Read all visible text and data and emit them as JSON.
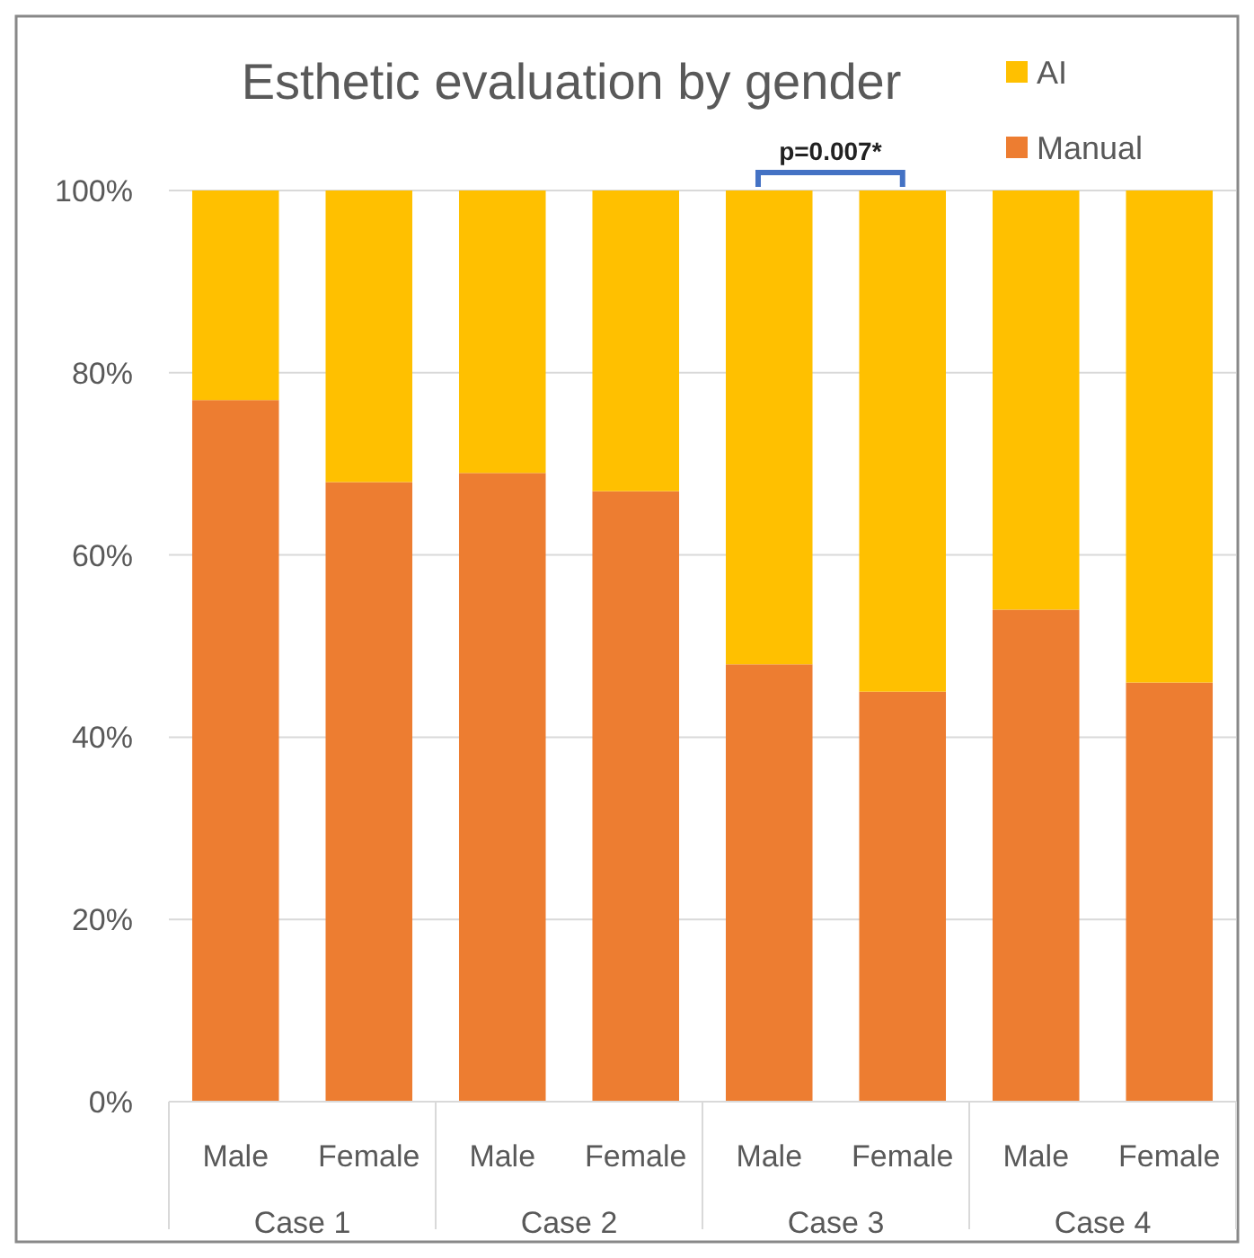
{
  "chart_data": {
    "type": "bar",
    "title": "Esthetic evaluation by gender",
    "categories": [
      "Male",
      "Female",
      "Male",
      "Female",
      "Male",
      "Female",
      "Male",
      "Female"
    ],
    "stacked": true,
    "ylim": [
      0,
      100
    ],
    "yticks": [
      {
        "value": 0,
        "label": "0%"
      },
      {
        "value": 20,
        "label": "20%"
      },
      {
        "value": 40,
        "label": "40%"
      },
      {
        "value": 60,
        "label": "60%"
      },
      {
        "value": 80,
        "label": "80%"
      },
      {
        "value": 100,
        "label": "100%"
      }
    ],
    "grid": "y",
    "legend": "top right",
    "series": [
      {
        "name": "Manual",
        "color": "#ed7d31",
        "values": [
          77,
          68,
          69,
          67,
          48,
          45,
          54,
          46
        ]
      },
      {
        "name": "AI",
        "color": "#ffc000",
        "values": [
          23,
          32,
          31,
          33,
          52,
          55,
          46,
          54
        ]
      }
    ],
    "annotations": [
      "Case 1",
      "Case 2",
      "Case 3",
      "Case 4",
      "p=0.007*"
    ]
  }
}
